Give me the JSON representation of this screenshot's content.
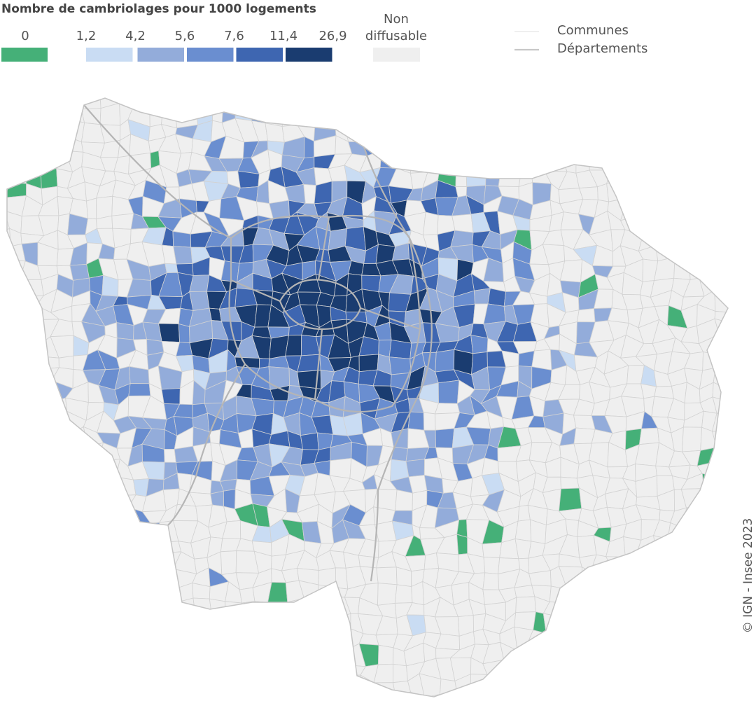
{
  "legend": {
    "title": "Nombre de cambriolages pour 1000 logements",
    "zero": {
      "label": "0",
      "color": "#45b078"
    },
    "breaks": [
      "1,2",
      "4,2",
      "5,6",
      "7,6",
      "11,4",
      "26,9"
    ],
    "colors": [
      "#c9dcf3",
      "#93acda",
      "#6a8ed0",
      "#3e66b1",
      "#1a3c70"
    ],
    "na": {
      "label_lines": [
        "Non",
        "diffusable"
      ],
      "color": "#efefef"
    }
  },
  "lines": {
    "communes": "Communes",
    "departements": "Départements"
  },
  "credit": "© IGN - Insee 2023"
}
